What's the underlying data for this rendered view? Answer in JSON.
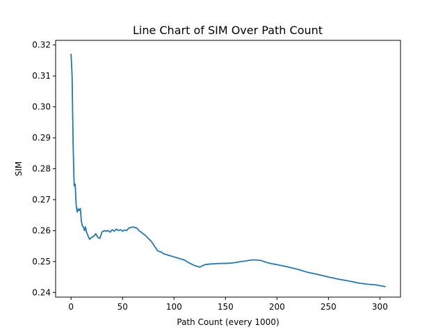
{
  "chart_data": {
    "type": "line",
    "title": "Line Chart of SIM Over Path Count",
    "xlabel": "Path Count (every 1000)",
    "ylabel": "SIM",
    "xlim": [
      -15,
      320
    ],
    "ylim": [
      0.2385,
      0.3215
    ],
    "xticks": [
      0,
      50,
      100,
      150,
      200,
      250,
      300
    ],
    "yticks": [
      0.24,
      0.25,
      0.26,
      0.27,
      0.28,
      0.29,
      0.3,
      0.31,
      0.32
    ],
    "grid": false,
    "legend": "none",
    "color": "#1f77b4",
    "series": [
      {
        "x": [
          0,
          1,
          2,
          3,
          4,
          5,
          6,
          7,
          8,
          9,
          10,
          11,
          12,
          13,
          14,
          15,
          16,
          17,
          18,
          20,
          22,
          24,
          26,
          28,
          30,
          32,
          34,
          36,
          38,
          40,
          42,
          44,
          46,
          48,
          50,
          52,
          54,
          56,
          58,
          60,
          62,
          64,
          66,
          68,
          70,
          72,
          75,
          78,
          80,
          82,
          84,
          86,
          88,
          90,
          95,
          100,
          105,
          110,
          115,
          120,
          125,
          130,
          135,
          140,
          145,
          150,
          155,
          160,
          165,
          170,
          175,
          180,
          185,
          190,
          195,
          200,
          210,
          220,
          230,
          240,
          250,
          260,
          270,
          280,
          290,
          295,
          300,
          305
        ],
        "y": [
          0.317,
          0.31,
          0.288,
          0.2745,
          0.275,
          0.268,
          0.266,
          0.267,
          0.2665,
          0.2672,
          0.263,
          0.2615,
          0.2612,
          0.26,
          0.2612,
          0.2595,
          0.2588,
          0.2578,
          0.2572,
          0.2578,
          0.2582,
          0.259,
          0.2578,
          0.2575,
          0.2595,
          0.26,
          0.2598,
          0.26,
          0.2595,
          0.2603,
          0.2598,
          0.2605,
          0.26,
          0.2603,
          0.2598,
          0.2602,
          0.26,
          0.2608,
          0.261,
          0.2612,
          0.261,
          0.2608,
          0.26,
          0.2595,
          0.259,
          0.2585,
          0.2575,
          0.2565,
          0.2555,
          0.2545,
          0.2535,
          0.2532,
          0.253,
          0.2525,
          0.252,
          0.2515,
          0.251,
          0.2505,
          0.2495,
          0.2487,
          0.2482,
          0.249,
          0.2492,
          0.2493,
          0.2494,
          0.2494,
          0.2495,
          0.2497,
          0.25,
          0.2502,
          0.2505,
          0.2505,
          0.2503,
          0.2497,
          0.2493,
          0.249,
          0.2483,
          0.2475,
          0.2465,
          0.2458,
          0.245,
          0.2443,
          0.2437,
          0.243,
          0.2426,
          0.2425,
          0.2422,
          0.2419
        ]
      }
    ]
  }
}
